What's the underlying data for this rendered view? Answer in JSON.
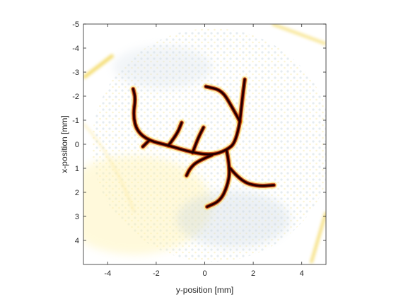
{
  "chart_data": {
    "type": "heatmap",
    "title": "",
    "xlabel": "y-position [mm]",
    "ylabel": "x-position [mm]",
    "xlim": [
      -5,
      5
    ],
    "ylim": [
      -5,
      5
    ],
    "y_axis_reversed": true,
    "xticks": [
      -4,
      -2,
      0,
      2,
      4
    ],
    "yticks": [
      -5,
      -4,
      -3,
      -2,
      -1,
      0,
      1,
      2,
      3,
      4
    ],
    "grid": false,
    "box": true,
    "colormap": {
      "low": "#9fb7c9",
      "background": "#ffffff",
      "mid": "#ffe25a",
      "high_1": "#c2410a",
      "high_2": "#5a0000",
      "peak": "#1a0000"
    },
    "vessel_paths_data_units": [
      [
        [
          1.45,
          -0.95
        ],
        [
          1.55,
          -1.9
        ],
        [
          1.65,
          -2.7
        ]
      ],
      [
        [
          1.45,
          -0.95
        ],
        [
          1.1,
          -1.6
        ],
        [
          0.7,
          -2.25
        ],
        [
          0.05,
          -2.4
        ]
      ],
      [
        [
          1.45,
          -0.95
        ],
        [
          1.3,
          -0.1
        ],
        [
          0.9,
          0.25
        ],
        [
          0.3,
          0.45
        ],
        [
          -0.5,
          0.35
        ],
        [
          -1.5,
          0.05
        ],
        [
          -2.3,
          -0.15
        ],
        [
          -2.8,
          -0.55
        ],
        [
          -2.95,
          -1.2
        ],
        [
          -2.85,
          -1.9
        ],
        [
          -2.95,
          -2.3
        ]
      ],
      [
        [
          -2.3,
          -0.15
        ],
        [
          -2.55,
          0.1
        ]
      ],
      [
        [
          -1.5,
          0.05
        ],
        [
          -1.15,
          -0.4
        ],
        [
          -0.95,
          -0.9
        ]
      ],
      [
        [
          -0.5,
          0.35
        ],
        [
          -0.3,
          -0.2
        ],
        [
          -0.05,
          -0.7
        ]
      ],
      [
        [
          0.3,
          0.45
        ],
        [
          -0.3,
          0.7
        ],
        [
          -0.6,
          1.0
        ],
        [
          -0.75,
          1.3
        ]
      ],
      [
        [
          0.9,
          0.25
        ],
        [
          1.05,
          1.0
        ],
        [
          0.95,
          1.7
        ],
        [
          0.65,
          2.35
        ],
        [
          0.1,
          2.6
        ]
      ],
      [
        [
          1.05,
          1.0
        ],
        [
          1.5,
          1.55
        ],
        [
          2.2,
          1.75
        ],
        [
          2.85,
          1.7
        ]
      ]
    ]
  }
}
